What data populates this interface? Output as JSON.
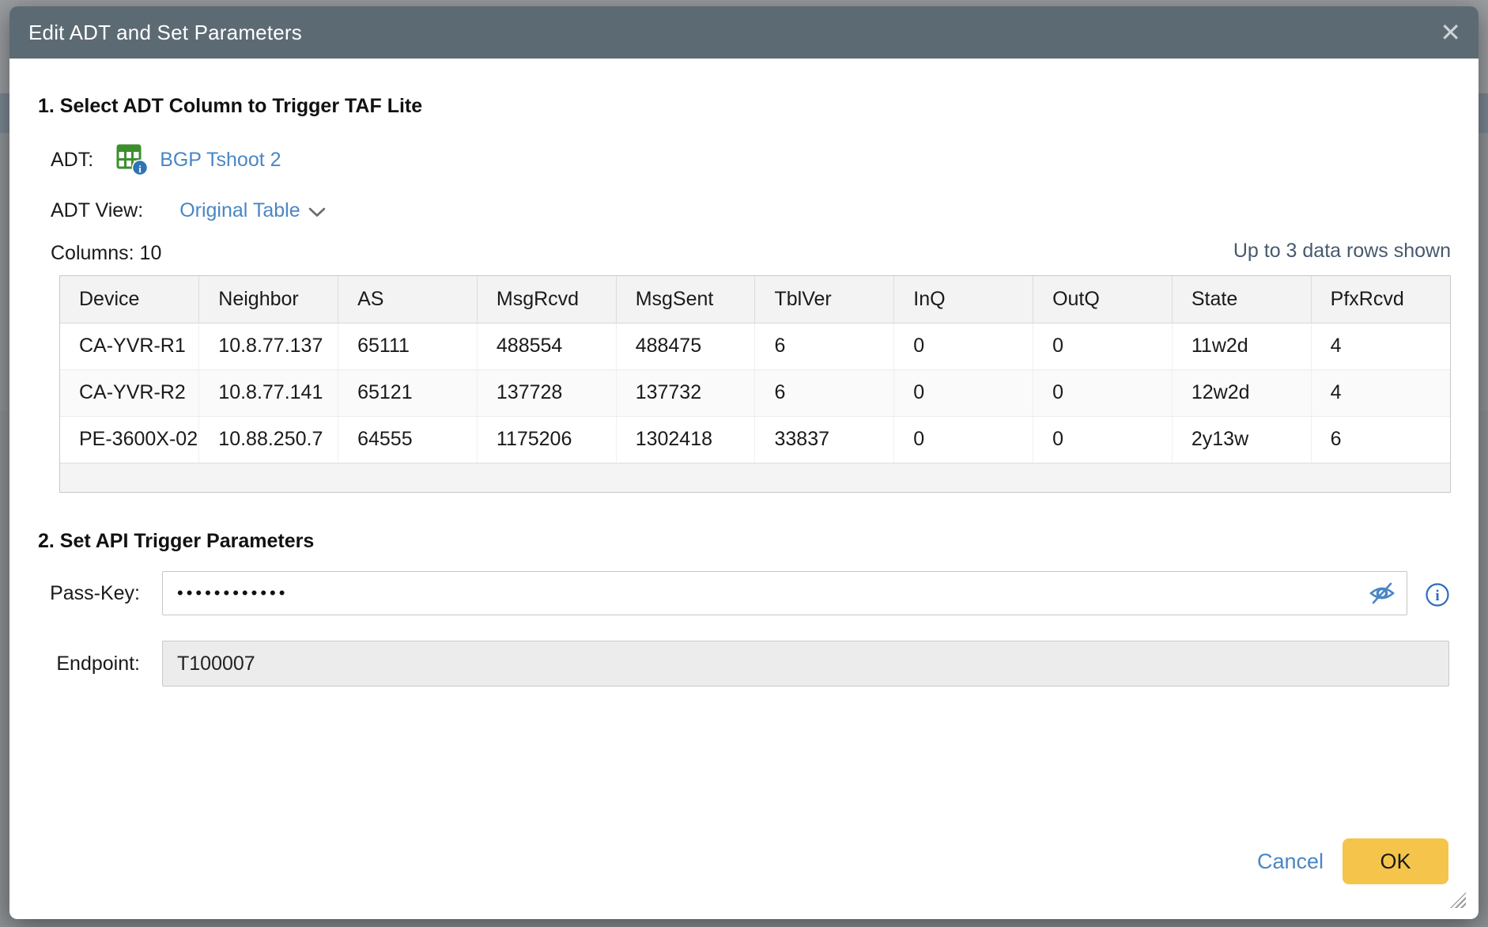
{
  "dialog": {
    "title": "Edit ADT and Set Parameters"
  },
  "icons": {
    "close": "✕"
  },
  "section1": {
    "heading": "1. Select ADT Column to Trigger TAF Lite",
    "adt_label": "ADT:",
    "adt_name": "BGP Tshoot 2",
    "adt_view_label": "ADT View:",
    "adt_view_value": "Original Table",
    "columns_info": "Columns: 10",
    "rows_info": "Up to 3 data rows shown"
  },
  "table": {
    "headers": [
      "Device",
      "Neighbor",
      "AS",
      "MsgRcvd",
      "MsgSent",
      "TblVer",
      "InQ",
      "OutQ",
      "State",
      "PfxRcvd"
    ],
    "rows": [
      [
        "CA-YVR-R1",
        "10.8.77.137",
        "65111",
        "488554",
        "488475",
        "6",
        "0",
        "0",
        "11w2d",
        "4"
      ],
      [
        "CA-YVR-R2",
        "10.8.77.141",
        "65121",
        "137728",
        "137732",
        "6",
        "0",
        "0",
        "12w2d",
        "4"
      ],
      [
        "PE-3600X-02",
        "10.88.250.7",
        "64555",
        "1175206",
        "1302418",
        "33837",
        "0",
        "0",
        "2y13w",
        "6"
      ]
    ]
  },
  "section2": {
    "heading": "2. Set API Trigger Parameters",
    "passkey_label": "Pass-Key:",
    "passkey_value": "••••••••••••",
    "endpoint_label": "Endpoint:",
    "endpoint_value": "T100007"
  },
  "footer": {
    "cancel_label": "Cancel",
    "ok_label": "OK"
  },
  "colors": {
    "header_bg": "#5c6a74",
    "link": "#4a86c6",
    "ok_bg": "#f5c54b",
    "rows_info": "#47596d",
    "table_icon_green": "#3e8e2e",
    "badge_blue": "#2e74b5"
  }
}
